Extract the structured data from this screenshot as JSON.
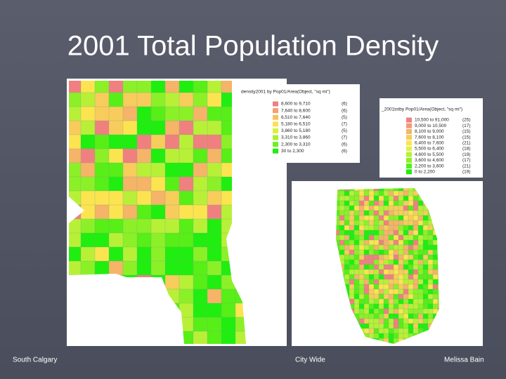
{
  "title": "2001 Total Population Density",
  "maps": [
    {
      "legend": {
        "title": "density2001 by Pop01/Area(Object, \"sq mi\")",
        "items": [
          {
            "label": "8,600 to 9,710",
            "count": "(6)",
            "color": "#f08080"
          },
          {
            "label": "7,640 to 8,600",
            "count": "(6)",
            "color": "#f4a070"
          },
          {
            "label": "6,510 to 7,640",
            "count": "(5)",
            "color": "#f8c060"
          },
          {
            "label": "5,180 to 6,510",
            "count": "(7)",
            "color": "#fce050"
          },
          {
            "label": "3,860 to 5,180",
            "count": "(5)",
            "color": "#d8f040"
          },
          {
            "label": "3,310 to 3,860",
            "count": "(7)",
            "color": "#a8f030"
          },
          {
            "label": "2,300 to 3,310",
            "count": "(6)",
            "color": "#70f020"
          },
          {
            "label": "30 to 2,300",
            "count": "(6)",
            "color": "#20ee10"
          }
        ]
      }
    },
    {
      "legend": {
        "title": "_2001totby Pop01/Area(Object, \"sq mi\")",
        "items": [
          {
            "label": "10,500 to 91,000",
            "count": "(25)",
            "color": "#f08080"
          },
          {
            "label": "9,000 to 10,500",
            "count": "(17)",
            "color": "#f29a78"
          },
          {
            "label": "8,100 to 9,000",
            "count": "(15)",
            "color": "#f5b468"
          },
          {
            "label": "7,600 to 8,100",
            "count": "(15)",
            "color": "#f8cc5c"
          },
          {
            "label": "6,400 to 7,600",
            "count": "(21)",
            "color": "#fce450"
          },
          {
            "label": "5,500 to 6,400",
            "count": "(18)",
            "color": "#e0f048"
          },
          {
            "label": "4,600 to 5,500",
            "count": "(19)",
            "color": "#b8f038"
          },
          {
            "label": "3,600 to 4,600",
            "count": "(17)",
            "color": "#8cf028"
          },
          {
            "label": "2,200 to 3,600",
            "count": "(21)",
            "color": "#58ee18"
          },
          {
            "label": "0 to 2,200",
            "count": "(19)",
            "color": "#20ee10"
          }
        ]
      }
    }
  ],
  "footer": {
    "left": "South Calgary",
    "center": "City Wide",
    "right": "Melissa Bain"
  }
}
